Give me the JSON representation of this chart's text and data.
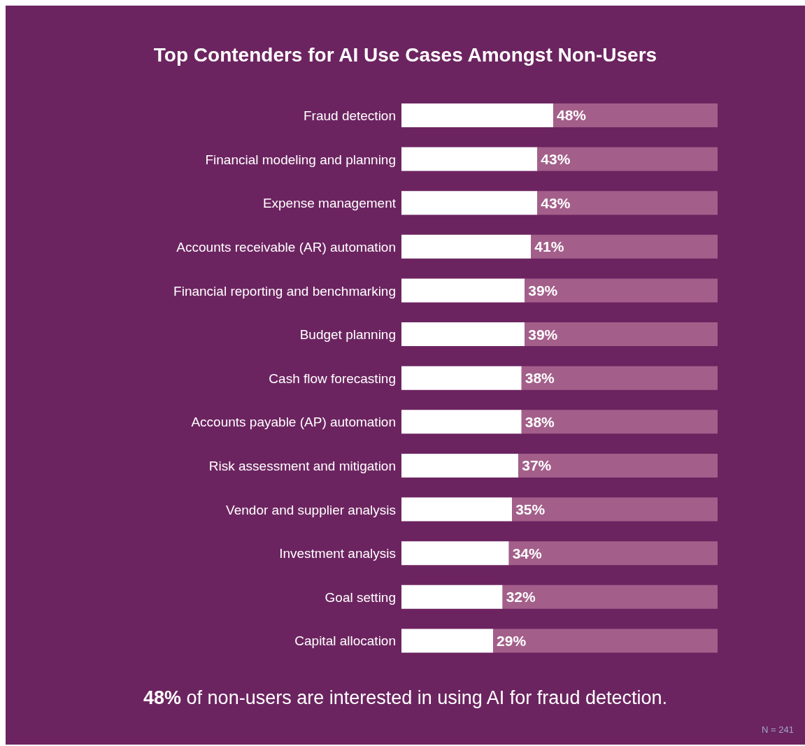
{
  "chart_data": {
    "type": "bar",
    "orientation": "horizontal",
    "stacked": true,
    "title": "Top Contenders for AI Use Cases Amongst Non-Users",
    "categories": [
      "Fraud detection",
      "Financial modeling and planning",
      "Expense management",
      "Accounts receivable (AR) automation",
      "Financial reporting and benchmarking",
      "Budget planning",
      "Cash flow forecasting",
      "Accounts payable (AP) automation",
      "Risk assessment and mitigation",
      "Vendor and supplier analysis",
      "Investment analysis",
      "Goal setting",
      "Capital allocation"
    ],
    "series": [
      {
        "color": "#ffffff",
        "values": [
          48,
          43,
          43,
          41,
          39,
          39,
          38,
          38,
          37,
          35,
          34,
          32,
          29
        ],
        "value_labels": [
          "48%",
          "43%",
          "43%",
          "41%",
          "39%",
          "39%",
          "38%",
          "38%",
          "37%",
          "35%",
          "34%",
          "32%",
          "29%"
        ]
      },
      {
        "color": "#a35f8a",
        "values": [
          52,
          57,
          57,
          59,
          61,
          61,
          62,
          62,
          63,
          65,
          66,
          68,
          71
        ]
      }
    ],
    "xlim": [
      0,
      100
    ],
    "tick_labels": "y",
    "annotations": [
      "48% of non-users are interested in using AI for fraud detection.",
      "N = 241"
    ]
  }
}
